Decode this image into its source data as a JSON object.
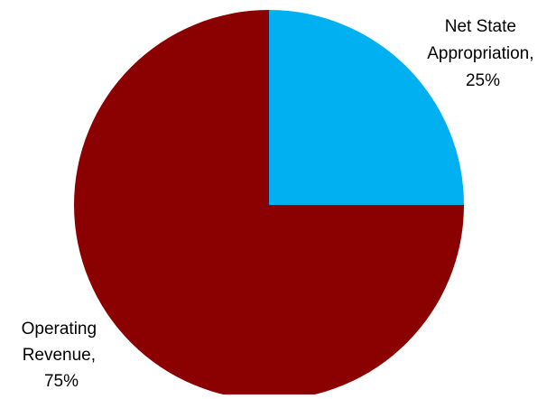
{
  "chart_data": {
    "type": "pie",
    "slices": [
      {
        "label_lines": [
          "Net State",
          "Appropriation,",
          "25%"
        ],
        "category": "Net State Appropriation",
        "value": 25,
        "color": "#00B0F0"
      },
      {
        "label_lines": [
          "Operating",
          "Revenue,",
          "75%"
        ],
        "category": "Operating Revenue",
        "value": 75,
        "color": "#8B0000"
      }
    ],
    "start_angle_deg": 0,
    "direction": "clockwise",
    "legend": "none"
  }
}
